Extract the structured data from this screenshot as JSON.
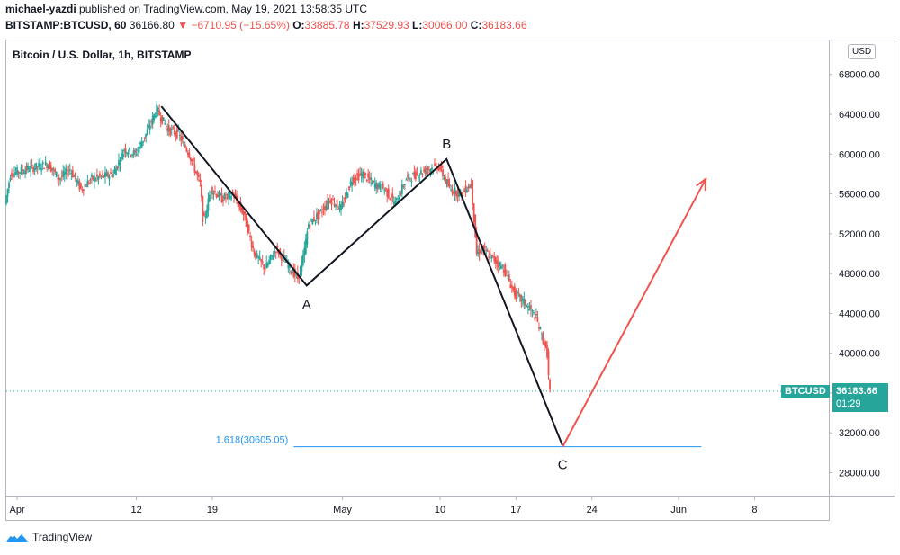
{
  "header": {
    "author": "michael-yazdi",
    "published_text": "published on TradingView.com, May 19, 2021 13:58:35 UTC",
    "symbol": "BITSTAMP:BTCUSD, 60",
    "last": "36166.80",
    "change": "−6710.95 (−15.65%)",
    "o_label": "O:",
    "o": "33885.78",
    "h_label": "H:",
    "h": "37529.93",
    "l_label": "L:",
    "l": "30066.00",
    "c_label": "C:",
    "c": "36183.66"
  },
  "pane": {
    "title": "Bitcoin / U.S. Dollar, 1h, BITSTAMP",
    "currency_badge": "USD",
    "last_symbol": "BTCUSD",
    "last_price": "36183.66",
    "countdown": "01:29"
  },
  "footer": {
    "brand": "TradingView"
  },
  "colors": {
    "up": "#26a69a",
    "down": "#ef5350",
    "pattern": "#131722",
    "projection": "#ef5350",
    "fib": "#2196f3"
  },
  "chart_data": {
    "type": "candlestick",
    "title": "Bitcoin / U.S. Dollar, 1h, BITSTAMP",
    "ylim": [
      26500,
      70000
    ],
    "y_ticks": [
      28000,
      32000,
      36000,
      40000,
      44000,
      48000,
      52000,
      56000,
      60000,
      64000,
      68000
    ],
    "x_ticks": [
      {
        "label": "Apr",
        "day": 1
      },
      {
        "label": "12",
        "day": 12
      },
      {
        "label": "19",
        "day": 19
      },
      {
        "label": "May",
        "day": 31
      },
      {
        "label": "10",
        "day": 40
      },
      {
        "label": "17",
        "day": 47
      },
      {
        "label": "24",
        "day": 54
      },
      {
        "label": "Jun",
        "day": 62
      },
      {
        "label": "8",
        "day": 69
      }
    ],
    "x_unit": "days since Mar 31, 2021",
    "price_path": [
      [
        0,
        55000
      ],
      [
        0.5,
        58000
      ],
      [
        2,
        58500
      ],
      [
        4,
        59000
      ],
      [
        5,
        57500
      ],
      [
        6,
        58500
      ],
      [
        7,
        56500
      ],
      [
        8,
        57500
      ],
      [
        10,
        58000
      ],
      [
        11,
        60500
      ],
      [
        12,
        60000
      ],
      [
        13,
        62000
      ],
      [
        14,
        64500
      ],
      [
        15,
        62500
      ],
      [
        16,
        62000
      ],
      [
        17,
        60000
      ],
      [
        18,
        57000
      ],
      [
        18.3,
        53000
      ],
      [
        19,
        56500
      ],
      [
        20,
        55500
      ],
      [
        21,
        56000
      ],
      [
        22,
        54000
      ],
      [
        23,
        50000
      ],
      [
        24,
        48500
      ],
      [
        25,
        50500
      ],
      [
        26,
        49000
      ],
      [
        27,
        47500
      ],
      [
        27.5,
        49500
      ],
      [
        28,
        53000
      ],
      [
        29,
        54000
      ],
      [
        30,
        55500
      ],
      [
        31,
        54500
      ],
      [
        32,
        57500
      ],
      [
        33,
        58000
      ],
      [
        34,
        57000
      ],
      [
        35,
        56500
      ],
      [
        36,
        55000
      ],
      [
        37,
        57500
      ],
      [
        38,
        58000
      ],
      [
        39,
        58500
      ],
      [
        40,
        58800
      ],
      [
        41,
        56500
      ],
      [
        42,
        56000
      ],
      [
        43,
        57000
      ],
      [
        43.5,
        50000
      ],
      [
        44,
        50500
      ],
      [
        45,
        49500
      ],
      [
        46,
        48500
      ],
      [
        47,
        46000
      ],
      [
        48,
        45000
      ],
      [
        49,
        43500
      ],
      [
        50,
        40000
      ],
      [
        50.2,
        36200
      ]
    ],
    "pattern": [
      {
        "label": "",
        "x": 14.3,
        "y": 64800
      },
      {
        "label": "A",
        "x": 27.7,
        "y": 46800
      },
      {
        "label": "B",
        "x": 40.6,
        "y": 59500
      },
      {
        "label": "C",
        "x": 51.3,
        "y": 30700
      }
    ],
    "projection": [
      [
        51.3,
        30600
      ],
      [
        64.5,
        57500
      ]
    ],
    "fib": {
      "label": "1.618(30605.05)",
      "value": 30605.05,
      "x_start": 26.5,
      "x_end": 64.1
    },
    "last_price": 36183.66
  }
}
